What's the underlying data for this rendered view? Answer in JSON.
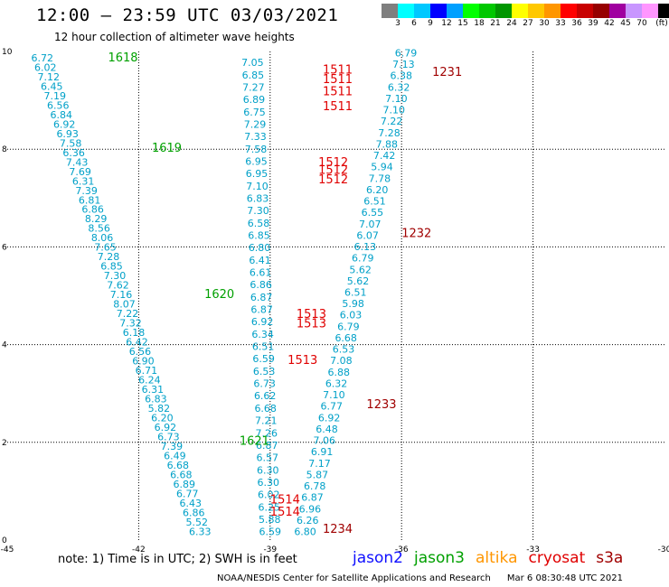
{
  "title": "12:00 — 23:59 UTC 03/03/2021",
  "subtitle": "12 hour collection of altimeter wave heights",
  "legend": {
    "colors": [
      "#7f7f7f",
      "#00ffff",
      "#00c8ff",
      "#0000ff",
      "#00a0ff",
      "#00ff00",
      "#00c800",
      "#009600",
      "#ffff00",
      "#ffc800",
      "#ff9600",
      "#ff0000",
      "#c80000",
      "#960000",
      "#a000a0",
      "#c896ff",
      "#ff96ff",
      "#000000"
    ],
    "labels": [
      "3",
      "6",
      "9",
      "12",
      "15",
      "18",
      "21",
      "24",
      "27",
      "30",
      "33",
      "36",
      "39",
      "42",
      "45",
      "70"
    ],
    "unit": "(ft)"
  },
  "note": "note:  1) Time is in UTC;  2) SWH is in feet",
  "satellites": [
    {
      "name": "jason2",
      "color": "#1010ff"
    },
    {
      "name": "jason3",
      "color": "#00a000"
    },
    {
      "name": "altika",
      "color": "#ff9600"
    },
    {
      "name": "cryosat",
      "color": "#e00000"
    },
    {
      "name": "s3a",
      "color": "#a00000"
    }
  ],
  "credit": "NOAA/NESDIS Center for Satellite Applications and Research",
  "timestamp": "Mar  6 08:30:48 UTC 2021",
  "chart_data": {
    "type": "scatter",
    "x_ticks": [
      "-45",
      "-42",
      "-39",
      "-36",
      "-33",
      "-30"
    ],
    "y_ticks": [
      "0",
      "2",
      "4",
      "6",
      "8",
      "10"
    ],
    "xlim": [
      -45,
      -30
    ],
    "ylim": [
      0,
      10
    ],
    "grid": true,
    "tracks": [
      {
        "satellite": "jason3",
        "color": "#00a0c8",
        "start": [
          -44.2,
          9.8
        ],
        "end": [
          -40.6,
          0.1
        ],
        "values": [
          "6.72",
          "6.02",
          "7.12",
          "6.45",
          "7.19",
          "6.56",
          "6.84",
          "6.92",
          "6.93",
          "7.58",
          "6.36",
          "7.43",
          "7.69",
          "6.31",
          "7.39",
          "6.81",
          "6.86",
          "8.29",
          "8.56",
          "8.06",
          "7.65",
          "7.28",
          "6.85",
          "7.30",
          "7.62",
          "7.16",
          "8.07",
          "7.22",
          "7.32",
          "6.18",
          "6.42",
          "6.56",
          "6.90",
          "6.71",
          "6.24",
          "6.31",
          "6.83",
          "5.82",
          "6.20",
          "6.92",
          "6.73",
          "7.39",
          "6.49",
          "6.68",
          "6.68",
          "6.89",
          "6.77",
          "6.43",
          "6.86",
          "5.52",
          "6.33"
        ]
      },
      {
        "satellite": "cryosat",
        "color": "#00a0c8",
        "start": [
          -39.4,
          9.7
        ],
        "end": [
          -39.0,
          0.1
        ],
        "values": [
          "7.05",
          "6.85",
          "7.27",
          "6.89",
          "6.75",
          "7.29",
          "7.33",
          "7.58",
          "6.95",
          "6.95",
          "7.10",
          "6.83",
          "7.30",
          "6.58",
          "6.85",
          "6.80",
          "6.41",
          "6.61",
          "6.86",
          "6.87",
          "6.87",
          "6.92",
          "6.34",
          "6.51",
          "6.59",
          "6.53",
          "6.73",
          "6.62",
          "6.68",
          "7.21",
          "7.26",
          "6.87",
          "6.57",
          "6.30",
          "6.30",
          "6.02",
          "6.25",
          "5.88",
          "6.59"
        ]
      },
      {
        "satellite": "s3a",
        "color": "#00a0c8",
        "start": [
          -35.9,
          9.9
        ],
        "end": [
          -38.2,
          0.1
        ],
        "values": [
          "6.79",
          "7.13",
          "6.38",
          "6.32",
          "7.10",
          "7.10",
          "7.22",
          "7.28",
          "7.88",
          "7.42",
          "5.94",
          "7.78",
          "6.20",
          "6.51",
          "6.55",
          "7.07",
          "6.07",
          "6.13",
          "6.79",
          "5.62",
          "5.62",
          "6.51",
          "5.98",
          "6.03",
          "6.79",
          "6.68",
          "6.53",
          "7.08",
          "6.88",
          "6.32",
          "7.10",
          "6.77",
          "6.92",
          "6.48",
          "7.06",
          "6.91",
          "7.17",
          "5.87",
          "6.78",
          "6.87",
          "6.96",
          "6.26",
          "6.80"
        ]
      }
    ],
    "time_labels": [
      {
        "text": "1618",
        "color": "#00a000",
        "x": -42.7,
        "y": 9.8
      },
      {
        "text": "1619",
        "color": "#00a000",
        "x": -41.7,
        "y": 7.95
      },
      {
        "text": "1620",
        "color": "#00a000",
        "x": -40.5,
        "y": 4.95
      },
      {
        "text": "1621",
        "color": "#00a000",
        "x": -39.7,
        "y": 1.95
      },
      {
        "text": "1511",
        "color": "#e00000",
        "x": -37.8,
        "y": 9.55
      },
      {
        "text": "1511",
        "color": "#e00000",
        "x": -37.8,
        "y": 9.35
      },
      {
        "text": "1511",
        "color": "#e00000",
        "x": -37.8,
        "y": 9.1
      },
      {
        "text": "1511",
        "color": "#e00000",
        "x": -37.8,
        "y": 8.8
      },
      {
        "text": "1512",
        "color": "#e00000",
        "x": -37.9,
        "y": 7.65
      },
      {
        "text": "1512",
        "color": "#e00000",
        "x": -37.9,
        "y": 7.5
      },
      {
        "text": "1512",
        "color": "#e00000",
        "x": -37.9,
        "y": 7.3
      },
      {
        "text": "1513",
        "color": "#e00000",
        "x": -38.4,
        "y": 4.55
      },
      {
        "text": "1513",
        "color": "#e00000",
        "x": -38.4,
        "y": 4.35
      },
      {
        "text": "1513",
        "color": "#e00000",
        "x": -38.6,
        "y": 3.6
      },
      {
        "text": "1514",
        "color": "#e00000",
        "x": -39.0,
        "y": 0.75
      },
      {
        "text": "1514",
        "color": "#e00000",
        "x": -39.0,
        "y": 0.5
      },
      {
        "text": "1231",
        "color": "#a00000",
        "x": -35.3,
        "y": 9.5
      },
      {
        "text": "1232",
        "color": "#a00000",
        "x": -36.0,
        "y": 6.2
      },
      {
        "text": "1233",
        "color": "#a00000",
        "x": -36.8,
        "y": 2.7
      },
      {
        "text": "1234",
        "color": "#a00000",
        "x": -37.8,
        "y": 0.15
      }
    ]
  }
}
